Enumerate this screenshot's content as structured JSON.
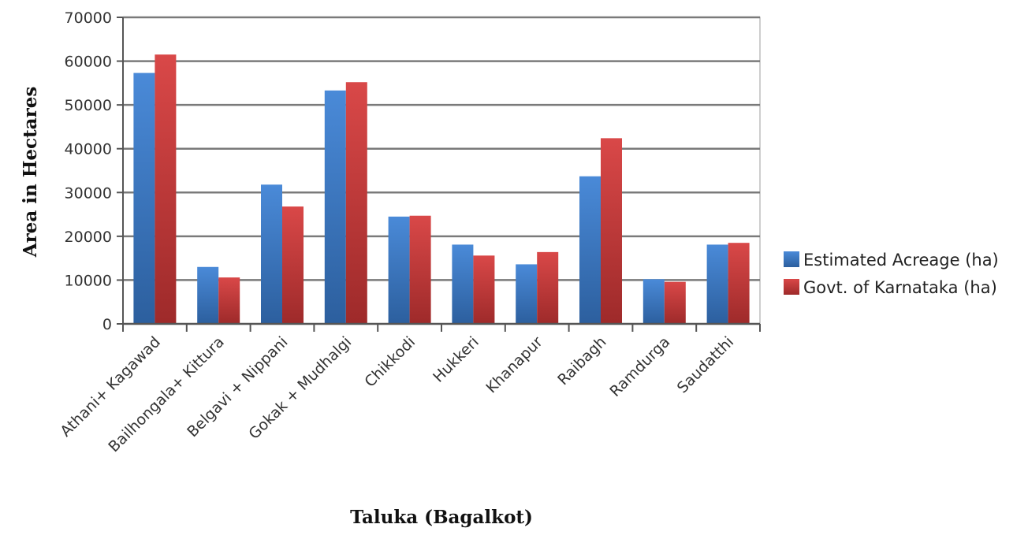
{
  "chart_data": {
    "type": "bar",
    "xlabel": "Taluka (Bagalkot)",
    "ylabel": "Area in Hectares",
    "ylim": [
      0,
      70000
    ],
    "yticks": [
      0,
      10000,
      20000,
      30000,
      40000,
      50000,
      60000,
      70000
    ],
    "grid": true,
    "legend_position": "right",
    "categories": [
      "Athani+ Kagawad",
      "Bailhongala+ Kittura",
      "Belgavi + Nippani",
      "Gokak + Mudhalgi",
      "Chikkodi",
      "Hukkeri",
      "Khanapur",
      "Raibagh",
      "Ramdurga",
      "Saudatthi"
    ],
    "series": [
      {
        "name": "Estimated Acreage (ha)",
        "color": "#3a78c9",
        "values": [
          57300,
          13000,
          31800,
          53300,
          24500,
          18100,
          13600,
          33700,
          10200,
          18100
        ]
      },
      {
        "name": "Govt. of Karnataka (ha)",
        "color": "#c83a3a",
        "values": [
          61500,
          10600,
          26800,
          55200,
          24700,
          15600,
          16400,
          42400,
          9600,
          18500
        ]
      }
    ]
  }
}
